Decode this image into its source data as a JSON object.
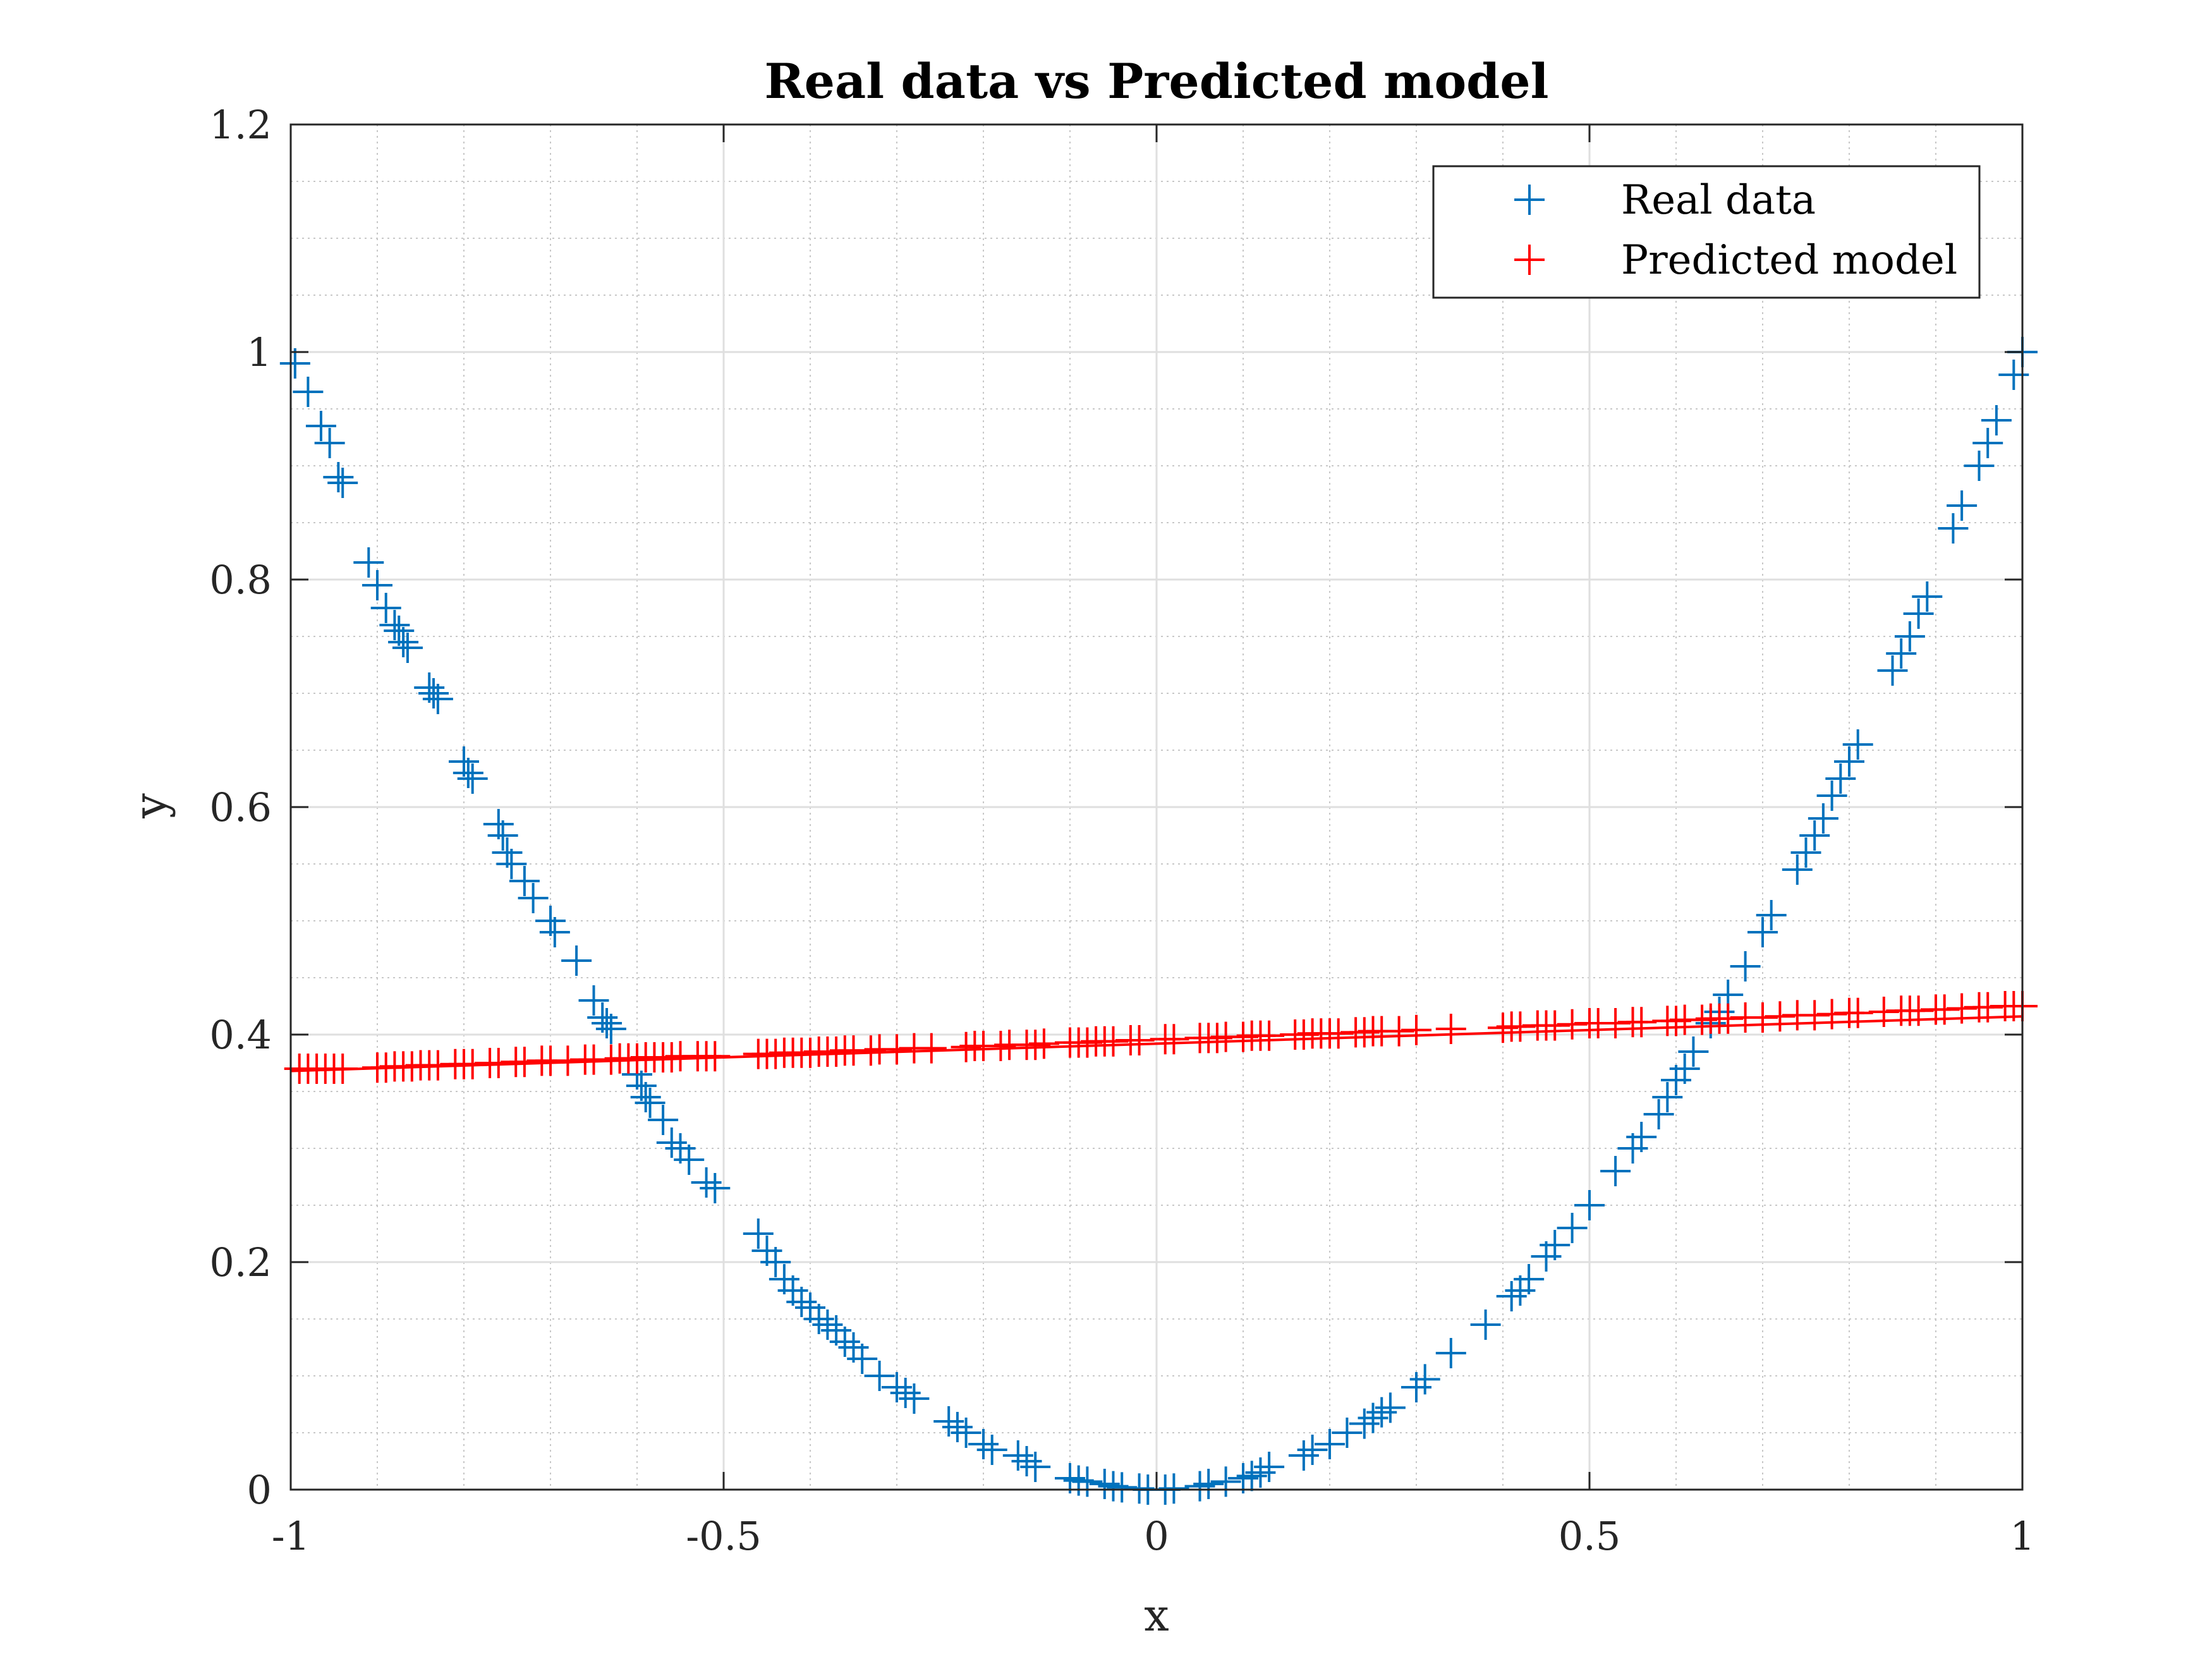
{
  "chart_data": {
    "type": "scatter",
    "title": "Real data vs Predicted model",
    "xlabel": "x",
    "ylabel": "y",
    "xlim": [
      -1,
      1
    ],
    "ylim": [
      0,
      1.2
    ],
    "xticks": [
      "-1",
      "-0.5",
      "0",
      "0.5",
      "1"
    ],
    "yticks": [
      "0",
      "0.2",
      "0.4",
      "0.6",
      "0.8",
      "1",
      "1.2"
    ],
    "grid": true,
    "minor_grid": true,
    "legend_position": "top-right",
    "series": [
      {
        "name": "Real data",
        "marker": "+",
        "color": "#0072BD",
        "x": [
          -0.995,
          -0.98,
          -0.965,
          -0.955,
          -0.945,
          -0.94,
          -0.91,
          -0.9,
          -0.89,
          -0.88,
          -0.875,
          -0.87,
          -0.865,
          -0.84,
          -0.835,
          -0.83,
          -0.8,
          -0.795,
          -0.79,
          -0.76,
          -0.755,
          -0.75,
          -0.745,
          -0.73,
          -0.72,
          -0.7,
          -0.695,
          -0.67,
          -0.65,
          -0.64,
          -0.635,
          -0.63,
          -0.6,
          -0.595,
          -0.59,
          -0.585,
          -0.57,
          -0.56,
          -0.55,
          -0.54,
          -0.52,
          -0.51,
          -0.46,
          -0.45,
          -0.44,
          -0.43,
          -0.42,
          -0.41,
          -0.4,
          -0.39,
          -0.38,
          -0.37,
          -0.36,
          -0.35,
          -0.34,
          -0.32,
          -0.3,
          -0.29,
          -0.28,
          -0.24,
          -0.23,
          -0.22,
          -0.2,
          -0.19,
          -0.16,
          -0.15,
          -0.14,
          -0.1,
          -0.09,
          -0.08,
          -0.06,
          -0.05,
          -0.04,
          -0.02,
          -0.01,
          0.01,
          0.02,
          0.05,
          0.06,
          0.08,
          0.1,
          0.11,
          0.12,
          0.13,
          0.17,
          0.18,
          0.2,
          0.22,
          0.24,
          0.25,
          0.26,
          0.27,
          0.3,
          0.31,
          0.34,
          0.38,
          0.41,
          0.42,
          0.43,
          0.45,
          0.46,
          0.48,
          0.5,
          0.53,
          0.55,
          0.56,
          0.58,
          0.59,
          0.6,
          0.61,
          0.62,
          0.64,
          0.65,
          0.66,
          0.68,
          0.7,
          0.71,
          0.74,
          0.75,
          0.76,
          0.77,
          0.78,
          0.79,
          0.8,
          0.81,
          0.85,
          0.86,
          0.87,
          0.88,
          0.89,
          0.92,
          0.93,
          0.95,
          0.96,
          0.97,
          0.99,
          1.0
        ],
        "y": [
          0.99,
          0.965,
          0.935,
          0.92,
          0.89,
          0.885,
          0.815,
          0.795,
          0.775,
          0.76,
          0.755,
          0.745,
          0.74,
          0.705,
          0.7,
          0.695,
          0.64,
          0.63,
          0.625,
          0.585,
          0.575,
          0.56,
          0.55,
          0.535,
          0.52,
          0.5,
          0.49,
          0.465,
          0.43,
          0.415,
          0.41,
          0.405,
          0.365,
          0.355,
          0.345,
          0.34,
          0.325,
          0.305,
          0.3,
          0.29,
          0.27,
          0.265,
          0.225,
          0.21,
          0.2,
          0.185,
          0.175,
          0.165,
          0.16,
          0.15,
          0.145,
          0.14,
          0.13,
          0.125,
          0.115,
          0.1,
          0.09,
          0.085,
          0.08,
          0.06,
          0.055,
          0.05,
          0.04,
          0.035,
          0.03,
          0.025,
          0.02,
          0.01,
          0.008,
          0.007,
          0.005,
          0.003,
          0.002,
          0.001,
          0.0,
          0.0,
          0.001,
          0.003,
          0.005,
          0.007,
          0.01,
          0.012,
          0.015,
          0.02,
          0.03,
          0.035,
          0.04,
          0.05,
          0.058,
          0.063,
          0.068,
          0.072,
          0.09,
          0.097,
          0.12,
          0.145,
          0.17,
          0.175,
          0.185,
          0.205,
          0.215,
          0.23,
          0.25,
          0.28,
          0.3,
          0.31,
          0.33,
          0.345,
          0.36,
          0.37,
          0.385,
          0.41,
          0.42,
          0.435,
          0.46,
          0.49,
          0.505,
          0.545,
          0.56,
          0.575,
          0.59,
          0.61,
          0.625,
          0.64,
          0.655,
          0.72,
          0.735,
          0.75,
          0.77,
          0.785,
          0.845,
          0.865,
          0.9,
          0.92,
          0.94,
          0.98,
          1.0
        ]
      },
      {
        "name": "Predicted model",
        "marker": "+",
        "color": "#FF0000",
        "x": [
          -0.99,
          -0.98,
          -0.97,
          -0.96,
          -0.95,
          -0.94,
          -0.9,
          -0.89,
          -0.88,
          -0.87,
          -0.86,
          -0.85,
          -0.84,
          -0.83,
          -0.81,
          -0.8,
          -0.79,
          -0.77,
          -0.76,
          -0.74,
          -0.73,
          -0.71,
          -0.7,
          -0.68,
          -0.66,
          -0.65,
          -0.63,
          -0.62,
          -0.61,
          -0.6,
          -0.59,
          -0.58,
          -0.57,
          -0.56,
          -0.55,
          -0.53,
          -0.52,
          -0.51,
          -0.46,
          -0.45,
          -0.44,
          -0.43,
          -0.42,
          -0.41,
          -0.4,
          -0.39,
          -0.38,
          -0.37,
          -0.36,
          -0.35,
          -0.33,
          -0.32,
          -0.3,
          -0.28,
          -0.26,
          -0.22,
          -0.21,
          -0.2,
          -0.18,
          -0.17,
          -0.15,
          -0.14,
          -0.13,
          -0.1,
          -0.09,
          -0.08,
          -0.07,
          -0.06,
          -0.05,
          -0.03,
          -0.02,
          0.01,
          0.02,
          0.05,
          0.06,
          0.07,
          0.08,
          0.1,
          0.11,
          0.12,
          0.13,
          0.16,
          0.17,
          0.18,
          0.19,
          0.2,
          0.21,
          0.23,
          0.24,
          0.25,
          0.26,
          0.28,
          0.3,
          0.34,
          0.4,
          0.41,
          0.42,
          0.44,
          0.45,
          0.46,
          0.48,
          0.5,
          0.51,
          0.53,
          0.55,
          0.56,
          0.59,
          0.6,
          0.61,
          0.63,
          0.64,
          0.65,
          0.66,
          0.68,
          0.7,
          0.72,
          0.74,
          0.76,
          0.78,
          0.8,
          0.81,
          0.84,
          0.86,
          0.87,
          0.88,
          0.9,
          0.91,
          0.93,
          0.95,
          0.96,
          0.98,
          0.99,
          1.0
        ],
        "y": [
          0.37,
          0.37,
          0.37,
          0.37,
          0.37,
          0.37,
          0.371,
          0.371,
          0.372,
          0.372,
          0.372,
          0.373,
          0.373,
          0.373,
          0.374,
          0.374,
          0.374,
          0.375,
          0.375,
          0.376,
          0.376,
          0.377,
          0.377,
          0.377,
          0.378,
          0.378,
          0.378,
          0.379,
          0.379,
          0.379,
          0.38,
          0.38,
          0.38,
          0.38,
          0.381,
          0.381,
          0.381,
          0.381,
          0.383,
          0.383,
          0.383,
          0.384,
          0.384,
          0.384,
          0.384,
          0.385,
          0.385,
          0.385,
          0.386,
          0.386,
          0.386,
          0.387,
          0.387,
          0.388,
          0.388,
          0.389,
          0.39,
          0.39,
          0.39,
          0.391,
          0.391,
          0.391,
          0.392,
          0.393,
          0.393,
          0.393,
          0.394,
          0.394,
          0.394,
          0.395,
          0.395,
          0.396,
          0.396,
          0.397,
          0.397,
          0.397,
          0.398,
          0.398,
          0.399,
          0.399,
          0.399,
          0.4,
          0.4,
          0.401,
          0.401,
          0.401,
          0.401,
          0.402,
          0.402,
          0.403,
          0.403,
          0.403,
          0.404,
          0.405,
          0.406,
          0.407,
          0.407,
          0.408,
          0.408,
          0.408,
          0.409,
          0.41,
          0.41,
          0.41,
          0.411,
          0.411,
          0.412,
          0.412,
          0.413,
          0.413,
          0.414,
          0.414,
          0.414,
          0.415,
          0.415,
          0.416,
          0.417,
          0.417,
          0.418,
          0.419,
          0.419,
          0.42,
          0.421,
          0.421,
          0.421,
          0.422,
          0.422,
          0.423,
          0.424,
          0.424,
          0.425,
          0.425,
          0.425
        ]
      }
    ],
    "model_line": {
      "x": [
        -1,
        1
      ],
      "y": [
        0.368,
        0.416
      ]
    }
  },
  "colors": {
    "real": "#0072BD",
    "predicted": "#FF0000",
    "axis": "#262626",
    "grid_major": "#dfdfdf",
    "grid_minor": "#c8c8c8"
  }
}
